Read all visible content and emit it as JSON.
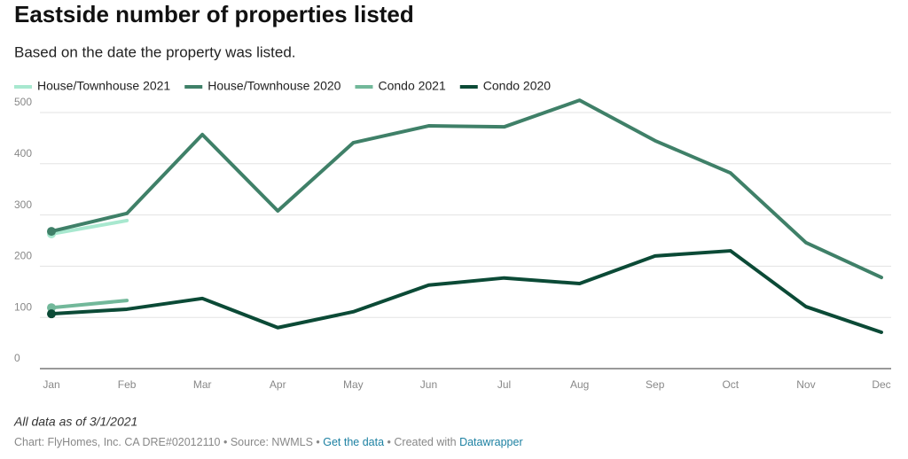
{
  "chart_data": {
    "type": "line",
    "title": "Eastside number of properties listed",
    "subtitle": "Based on the date the property was listed.",
    "categories": [
      "Jan",
      "Feb",
      "Mar",
      "Apr",
      "May",
      "Jun",
      "Jul",
      "Aug",
      "Sep",
      "Oct",
      "Nov",
      "Dec"
    ],
    "series": [
      {
        "name": "House/Townhouse 2021",
        "color": "#a8e8cf",
        "values": [
          263,
          289,
          null,
          null,
          null,
          null,
          null,
          null,
          null,
          null,
          null,
          null
        ]
      },
      {
        "name": "House/Townhouse 2020",
        "color": "#3f8068",
        "values": [
          268,
          303,
          457,
          308,
          441,
          474,
          472,
          524,
          445,
          382,
          246,
          178
        ]
      },
      {
        "name": "Condo 2021",
        "color": "#72b89a",
        "values": [
          119,
          133,
          null,
          null,
          null,
          null,
          null,
          null,
          null,
          null,
          null,
          null
        ]
      },
      {
        "name": "Condo 2020",
        "color": "#0b4a36",
        "values": [
          107,
          116,
          137,
          80,
          111,
          163,
          177,
          166,
          220,
          230,
          121,
          71
        ]
      }
    ],
    "ylim": [
      0,
      500
    ],
    "yticks": [
      0,
      100,
      200,
      300,
      400,
      500
    ],
    "grid": true,
    "note": "All data as of 3/1/2021",
    "footer": {
      "source": "Chart: FlyHomes, Inc. CA DRE#02012110 • Source: NWMLS •",
      "link": "Get the data",
      "created": "• Created with",
      "tool": "Datawrapper"
    }
  }
}
